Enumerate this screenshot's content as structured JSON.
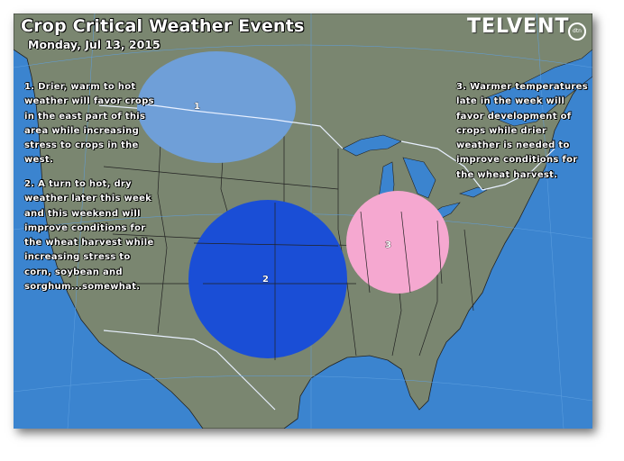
{
  "map": {
    "title": "Crop Critical Weather Events",
    "subtitle": "Monday, Jul 13, 2015",
    "logo": "TELVENT",
    "logo_mark": "dtn",
    "colors": {
      "ocean": "#3b84cf",
      "land": "#7a8670",
      "area_1": "#6f9fd8",
      "area_2": "#1a4ed6",
      "area_3": "#f5a8d0"
    },
    "areas": [
      {
        "label": "1",
        "note": "1. Drier, warm to hot weather will favor crops in the east part of this area while increasing stress to crops in the west."
      },
      {
        "label": "2",
        "note": "2. A turn to hot, dry weather later this week and this weekend will improve conditions for the wheat harvest while increasing stress to corn, soybean and sorghum...somewhat."
      },
      {
        "label": "3",
        "note": "3. Warmer temperatures late in the week will favor development of crops while drier weather is needed to improve conditions for the wheat harvest."
      }
    ]
  }
}
